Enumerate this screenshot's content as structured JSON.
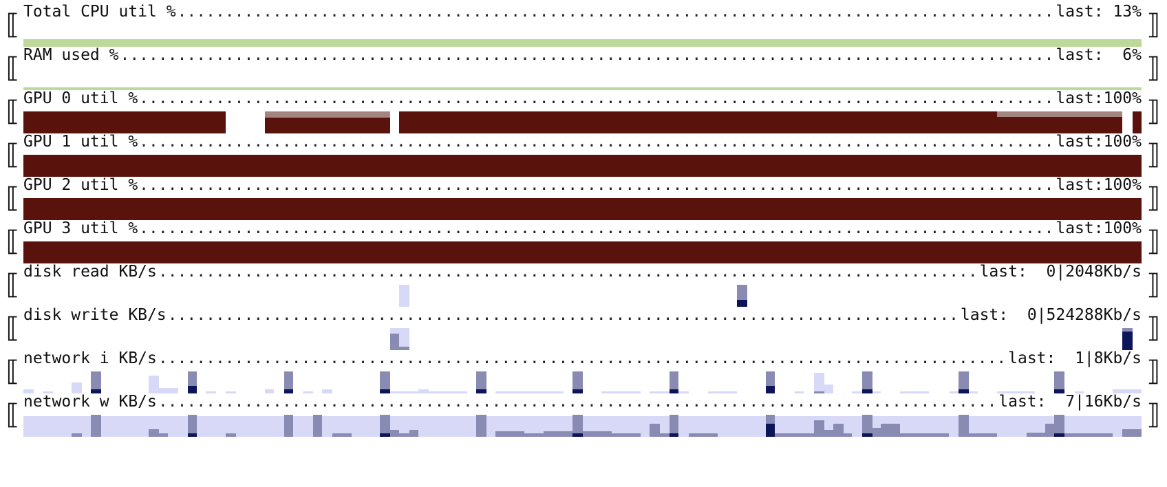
{
  "colors": {
    "cpu": "#bcd89a",
    "gpu": "#5a120c",
    "gpu_light": "#a38580",
    "io_light": "#d8d9f6",
    "io_mid": "#8a8bb3",
    "io_dark": "#0d1559"
  },
  "panels": [
    {
      "id": "cpu",
      "title": "Total CPU util %",
      "last_label": "last:",
      "last_value": " 13%",
      "bars": [
        {
          "from": 0.0,
          "to": 1.0,
          "level": 0.35,
          "color": "#bcd89a"
        },
        {
          "from": 0.981,
          "to": 0.989,
          "level": 0.15,
          "color": "#bcd89a"
        }
      ]
    },
    {
      "id": "ram",
      "title": "RAM used %",
      "last_label": "last:",
      "last_value": "  6%",
      "bars": [
        {
          "from": 0.0,
          "to": 1.0,
          "level": 0.12,
          "color": "#bcd89a"
        }
      ]
    },
    {
      "id": "gpu0",
      "title": "GPU 0 util %",
      "last_label": "last:",
      "last_value": "100%",
      "bars": [
        {
          "from": 0.0,
          "to": 0.181,
          "level": 1.0,
          "color": "#5a120c"
        },
        {
          "from": 0.216,
          "to": 0.328,
          "level": 1.0,
          "color": "#a38580"
        },
        {
          "from": 0.216,
          "to": 0.328,
          "level": 0.72,
          "color": "#5a120c"
        },
        {
          "from": 0.336,
          "to": 0.983,
          "level": 1.0,
          "color": "#5a120c"
        },
        {
          "from": 0.871,
          "to": 0.983,
          "level": 1.0,
          "color": "#a38580"
        },
        {
          "from": 0.871,
          "to": 0.983,
          "level": 0.75,
          "color": "#5a120c"
        },
        {
          "from": 0.992,
          "to": 1.0,
          "level": 1.0,
          "color": "#5a120c"
        }
      ]
    },
    {
      "id": "gpu1",
      "title": "GPU 1 util %",
      "last_label": "last:",
      "last_value": "100%",
      "bars": [
        {
          "from": 0.0,
          "to": 1.0,
          "level": 1.0,
          "color": "#5a120c"
        }
      ]
    },
    {
      "id": "gpu2",
      "title": "GPU 2 util %",
      "last_label": "last:",
      "last_value": "100%",
      "bars": [
        {
          "from": 0.0,
          "to": 1.0,
          "level": 1.0,
          "color": "#5a120c"
        }
      ]
    },
    {
      "id": "gpu3",
      "title": "GPU 3 util %",
      "last_label": "last:",
      "last_value": "100%",
      "bars": [
        {
          "from": 0.0,
          "to": 1.0,
          "level": 1.0,
          "color": "#5a120c"
        }
      ]
    },
    {
      "id": "disk_read",
      "title": "disk read KB/s",
      "last_label": "last:",
      "last_value": "  0|2048Kb/s",
      "bars": [
        {
          "from": 0.336,
          "to": 0.345,
          "level": 1.0,
          "color": "#d8d9f6"
        },
        {
          "from": 0.638,
          "to": 0.647,
          "level": 1.0,
          "color": "#8a8bb3"
        },
        {
          "from": 0.638,
          "to": 0.647,
          "level": 0.3,
          "color": "#0d1559"
        }
      ]
    },
    {
      "id": "disk_write",
      "title": "disk write KB/s",
      "last_label": "last:",
      "last_value": "  0|524288Kb/s",
      "bars": [
        {
          "from": 0.328,
          "to": 0.345,
          "level": 1.0,
          "color": "#d8d9f6"
        },
        {
          "from": 0.328,
          "to": 0.336,
          "level": 0.75,
          "color": "#8a8bb3"
        },
        {
          "from": 0.336,
          "to": 0.345,
          "level": 0.15,
          "color": "#8a8bb3"
        },
        {
          "from": 0.983,
          "to": 0.992,
          "level": 1.0,
          "color": "#8a8bb3"
        },
        {
          "from": 0.983,
          "to": 0.992,
          "level": 0.85,
          "color": "#0d1559"
        }
      ]
    },
    {
      "id": "net_in",
      "title": "network i KB/s",
      "last_label": "last:",
      "last_value": "  1|8Kb/s",
      "bars": [
        {
          "from": 0.0,
          "to": 0.009,
          "level": 0.2,
          "color": "#d8d9f6"
        },
        {
          "from": 0.017,
          "to": 0.026,
          "level": 0.1,
          "color": "#d8d9f6"
        },
        {
          "from": 0.043,
          "to": 0.052,
          "level": 0.5,
          "color": "#d8d9f6"
        },
        {
          "from": 0.061,
          "to": 0.069,
          "level": 0.15,
          "color": "#d8d9f6"
        },
        {
          "from": 0.112,
          "to": 0.121,
          "level": 0.8,
          "color": "#d8d9f6"
        },
        {
          "from": 0.121,
          "to": 0.138,
          "level": 0.25,
          "color": "#d8d9f6"
        },
        {
          "from": 0.147,
          "to": 0.155,
          "level": 0.15,
          "color": "#d8d9f6"
        },
        {
          "from": 0.163,
          "to": 0.172,
          "level": 0.1,
          "color": "#d8d9f6"
        },
        {
          "from": 0.181,
          "to": 0.19,
          "level": 0.1,
          "color": "#d8d9f6"
        },
        {
          "from": 0.216,
          "to": 0.224,
          "level": 0.2,
          "color": "#d8d9f6"
        },
        {
          "from": 0.25,
          "to": 0.259,
          "level": 0.1,
          "color": "#d8d9f6"
        },
        {
          "from": 0.267,
          "to": 0.276,
          "level": 0.2,
          "color": "#d8d9f6"
        },
        {
          "from": 0.328,
          "to": 0.353,
          "level": 0.1,
          "color": "#d8d9f6"
        },
        {
          "from": 0.353,
          "to": 0.362,
          "level": 0.2,
          "color": "#d8d9f6"
        },
        {
          "from": 0.362,
          "to": 0.397,
          "level": 0.1,
          "color": "#d8d9f6"
        },
        {
          "from": 0.422,
          "to": 0.483,
          "level": 0.1,
          "color": "#d8d9f6"
        },
        {
          "from": 0.517,
          "to": 0.552,
          "level": 0.1,
          "color": "#d8d9f6"
        },
        {
          "from": 0.56,
          "to": 0.595,
          "level": 0.1,
          "color": "#d8d9f6"
        },
        {
          "from": 0.612,
          "to": 0.638,
          "level": 0.1,
          "color": "#d8d9f6"
        },
        {
          "from": 0.69,
          "to": 0.698,
          "level": 0.1,
          "color": "#d8d9f6"
        },
        {
          "from": 0.707,
          "to": 0.716,
          "level": 0.1,
          "color": "#d8d9f6"
        },
        {
          "from": 0.707,
          "to": 0.716,
          "level": 0.1,
          "color": "#d8d9f6"
        },
        {
          "from": 0.741,
          "to": 0.75,
          "level": 0.1,
          "color": "#d8d9f6"
        },
        {
          "from": 0.759,
          "to": 0.767,
          "level": 0.1,
          "color": "#d8d9f6"
        },
        {
          "from": 0.707,
          "to": 0.716,
          "level": 0.95,
          "color": "#d8d9f6"
        },
        {
          "from": 0.716,
          "to": 0.724,
          "level": 0.4,
          "color": "#d8d9f6"
        },
        {
          "from": 0.707,
          "to": 0.716,
          "level": 0.1,
          "color": "#8a8bb3"
        },
        {
          "from": 0.784,
          "to": 0.81,
          "level": 0.1,
          "color": "#d8d9f6"
        },
        {
          "from": 0.828,
          "to": 0.853,
          "level": 0.1,
          "color": "#d8d9f6"
        },
        {
          "from": 0.871,
          "to": 0.905,
          "level": 0.1,
          "color": "#d8d9f6"
        },
        {
          "from": 0.94,
          "to": 0.948,
          "level": 0.1,
          "color": "#d8d9f6"
        },
        {
          "from": 0.974,
          "to": 1.0,
          "level": 0.2,
          "color": "#d8d9f6"
        },
        {
          "from": 0.06,
          "to": 0.069,
          "level": 1.0,
          "color": "#8a8bb3"
        },
        {
          "from": 0.06,
          "to": 0.069,
          "level": 0.2,
          "color": "#0d1559"
        },
        {
          "from": 0.147,
          "to": 0.155,
          "level": 1.0,
          "color": "#8a8bb3"
        },
        {
          "from": 0.147,
          "to": 0.155,
          "level": 0.35,
          "color": "#0d1559"
        },
        {
          "from": 0.233,
          "to": 0.241,
          "level": 1.0,
          "color": "#8a8bb3"
        },
        {
          "from": 0.233,
          "to": 0.241,
          "level": 0.2,
          "color": "#0d1559"
        },
        {
          "from": 0.319,
          "to": 0.328,
          "level": 1.0,
          "color": "#8a8bb3"
        },
        {
          "from": 0.319,
          "to": 0.328,
          "level": 0.2,
          "color": "#0d1559"
        },
        {
          "from": 0.405,
          "to": 0.414,
          "level": 1.0,
          "color": "#8a8bb3"
        },
        {
          "from": 0.405,
          "to": 0.414,
          "level": 0.2,
          "color": "#0d1559"
        },
        {
          "from": 0.491,
          "to": 0.5,
          "level": 1.0,
          "color": "#8a8bb3"
        },
        {
          "from": 0.491,
          "to": 0.5,
          "level": 0.2,
          "color": "#0d1559"
        },
        {
          "from": 0.578,
          "to": 0.586,
          "level": 1.0,
          "color": "#8a8bb3"
        },
        {
          "from": 0.578,
          "to": 0.586,
          "level": 0.2,
          "color": "#0d1559"
        },
        {
          "from": 0.664,
          "to": 0.672,
          "level": 1.0,
          "color": "#8a8bb3"
        },
        {
          "from": 0.664,
          "to": 0.672,
          "level": 0.35,
          "color": "#0d1559"
        },
        {
          "from": 0.75,
          "to": 0.759,
          "level": 1.0,
          "color": "#8a8bb3"
        },
        {
          "from": 0.75,
          "to": 0.759,
          "level": 0.2,
          "color": "#0d1559"
        },
        {
          "from": 0.836,
          "to": 0.845,
          "level": 1.0,
          "color": "#8a8bb3"
        },
        {
          "from": 0.836,
          "to": 0.845,
          "level": 0.2,
          "color": "#0d1559"
        },
        {
          "from": 0.922,
          "to": 0.931,
          "level": 1.0,
          "color": "#8a8bb3"
        },
        {
          "from": 0.922,
          "to": 0.931,
          "level": 0.2,
          "color": "#0d1559"
        }
      ]
    },
    {
      "id": "net_out",
      "title": "network w KB/s",
      "last_label": "last:",
      "last_value": "  7|16Kb/s",
      "bars": [
        {
          "from": 0.0,
          "to": 1.0,
          "level": 0.95,
          "color": "#d8d9f6"
        },
        {
          "from": 0.043,
          "to": 0.052,
          "level": 0.15,
          "color": "#8a8bb3"
        },
        {
          "from": 0.112,
          "to": 0.121,
          "level": 0.35,
          "color": "#8a8bb3"
        },
        {
          "from": 0.121,
          "to": 0.129,
          "level": 0.15,
          "color": "#8a8bb3"
        },
        {
          "from": 0.181,
          "to": 0.19,
          "level": 0.15,
          "color": "#8a8bb3"
        },
        {
          "from": 0.276,
          "to": 0.293,
          "level": 0.15,
          "color": "#8a8bb3"
        },
        {
          "from": 0.328,
          "to": 0.336,
          "level": 0.3,
          "color": "#8a8bb3"
        },
        {
          "from": 0.336,
          "to": 0.345,
          "level": 0.15,
          "color": "#8a8bb3"
        },
        {
          "from": 0.345,
          "to": 0.353,
          "level": 0.3,
          "color": "#8a8bb3"
        },
        {
          "from": 0.422,
          "to": 0.448,
          "level": 0.25,
          "color": "#8a8bb3"
        },
        {
          "from": 0.448,
          "to": 0.465,
          "level": 0.15,
          "color": "#8a8bb3"
        },
        {
          "from": 0.465,
          "to": 0.491,
          "level": 0.25,
          "color": "#8a8bb3"
        },
        {
          "from": 0.5,
          "to": 0.526,
          "level": 0.25,
          "color": "#8a8bb3"
        },
        {
          "from": 0.526,
          "to": 0.552,
          "level": 0.15,
          "color": "#8a8bb3"
        },
        {
          "from": 0.56,
          "to": 0.569,
          "level": 0.6,
          "color": "#8a8bb3"
        },
        {
          "from": 0.569,
          "to": 0.578,
          "level": 0.15,
          "color": "#8a8bb3"
        },
        {
          "from": 0.595,
          "to": 0.621,
          "level": 0.15,
          "color": "#8a8bb3"
        },
        {
          "from": 0.672,
          "to": 0.707,
          "level": 0.15,
          "color": "#8a8bb3"
        },
        {
          "from": 0.707,
          "to": 0.716,
          "level": 0.75,
          "color": "#8a8bb3"
        },
        {
          "from": 0.716,
          "to": 0.724,
          "level": 0.3,
          "color": "#8a8bb3"
        },
        {
          "from": 0.724,
          "to": 0.733,
          "level": 0.6,
          "color": "#8a8bb3"
        },
        {
          "from": 0.733,
          "to": 0.741,
          "level": 0.15,
          "color": "#8a8bb3"
        },
        {
          "from": 0.759,
          "to": 0.767,
          "level": 0.4,
          "color": "#8a8bb3"
        },
        {
          "from": 0.767,
          "to": 0.784,
          "level": 0.6,
          "color": "#8a8bb3"
        },
        {
          "from": 0.784,
          "to": 0.828,
          "level": 0.15,
          "color": "#8a8bb3"
        },
        {
          "from": 0.845,
          "to": 0.871,
          "level": 0.15,
          "color": "#8a8bb3"
        },
        {
          "from": 0.897,
          "to": 0.914,
          "level": 0.2,
          "color": "#8a8bb3"
        },
        {
          "from": 0.914,
          "to": 0.922,
          "level": 0.6,
          "color": "#8a8bb3"
        },
        {
          "from": 0.931,
          "to": 0.974,
          "level": 0.15,
          "color": "#8a8bb3"
        },
        {
          "from": 0.983,
          "to": 1.0,
          "level": 0.35,
          "color": "#8a8bb3"
        },
        {
          "from": 0.06,
          "to": 0.069,
          "level": 1.0,
          "color": "#8a8bb3"
        },
        {
          "from": 0.147,
          "to": 0.155,
          "level": 1.0,
          "color": "#8a8bb3"
        },
        {
          "from": 0.147,
          "to": 0.155,
          "level": 0.15,
          "color": "#0d1559"
        },
        {
          "from": 0.233,
          "to": 0.241,
          "level": 1.0,
          "color": "#8a8bb3"
        },
        {
          "from": 0.259,
          "to": 0.267,
          "level": 1.0,
          "color": "#8a8bb3"
        },
        {
          "from": 0.319,
          "to": 0.328,
          "level": 1.0,
          "color": "#8a8bb3"
        },
        {
          "from": 0.319,
          "to": 0.328,
          "level": 0.15,
          "color": "#0d1559"
        },
        {
          "from": 0.405,
          "to": 0.414,
          "level": 1.0,
          "color": "#8a8bb3"
        },
        {
          "from": 0.491,
          "to": 0.5,
          "level": 1.0,
          "color": "#8a8bb3"
        },
        {
          "from": 0.491,
          "to": 0.5,
          "level": 0.15,
          "color": "#0d1559"
        },
        {
          "from": 0.578,
          "to": 0.586,
          "level": 1.0,
          "color": "#8a8bb3"
        },
        {
          "from": 0.578,
          "to": 0.586,
          "level": 0.15,
          "color": "#0d1559"
        },
        {
          "from": 0.664,
          "to": 0.672,
          "level": 1.0,
          "color": "#8a8bb3"
        },
        {
          "from": 0.664,
          "to": 0.672,
          "level": 0.6,
          "color": "#0d1559"
        },
        {
          "from": 0.75,
          "to": 0.759,
          "level": 1.0,
          "color": "#8a8bb3"
        },
        {
          "from": 0.75,
          "to": 0.759,
          "level": 0.15,
          "color": "#0d1559"
        },
        {
          "from": 0.836,
          "to": 0.845,
          "level": 1.0,
          "color": "#8a8bb3"
        },
        {
          "from": 0.922,
          "to": 0.931,
          "level": 1.0,
          "color": "#8a8bb3"
        },
        {
          "from": 0.922,
          "to": 0.931,
          "level": 0.15,
          "color": "#0d1559"
        }
      ]
    }
  ]
}
